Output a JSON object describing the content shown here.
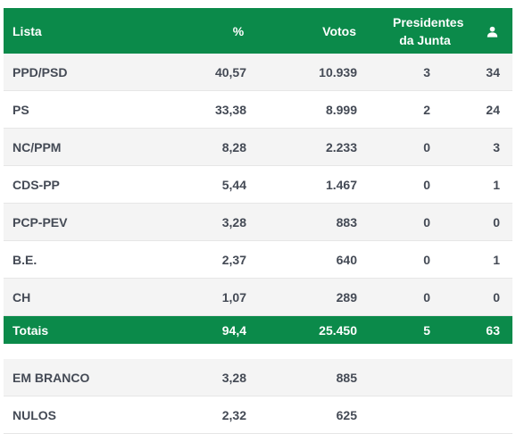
{
  "header": {
    "lista": "Lista",
    "pct": "%",
    "votos": "Votos",
    "presidentes_line1": "Presidentes",
    "presidentes_line2": "da Junta",
    "mandates_icon": "user-icon"
  },
  "rows": [
    {
      "lista": "PPD/PSD",
      "pct": "40,57",
      "votos": "10.939",
      "presidentes": "3",
      "mandatos": "34"
    },
    {
      "lista": "PS",
      "pct": "33,38",
      "votos": "8.999",
      "presidentes": "2",
      "mandatos": "24"
    },
    {
      "lista": "NC/PPM",
      "pct": "8,28",
      "votos": "2.233",
      "presidentes": "0",
      "mandatos": "3"
    },
    {
      "lista": "CDS-PP",
      "pct": "5,44",
      "votos": "1.467",
      "presidentes": "0",
      "mandatos": "1"
    },
    {
      "lista": "PCP-PEV",
      "pct": "3,28",
      "votos": "883",
      "presidentes": "0",
      "mandatos": "0"
    },
    {
      "lista": "B.E.",
      "pct": "2,37",
      "votos": "640",
      "presidentes": "0",
      "mandatos": "1"
    },
    {
      "lista": "CH",
      "pct": "1,07",
      "votos": "289",
      "presidentes": "0",
      "mandatos": "0"
    }
  ],
  "totals": {
    "label": "Totais",
    "pct": "94,4",
    "votos": "25.450",
    "presidentes": "5",
    "mandatos": "63"
  },
  "extra": [
    {
      "label": "EM BRANCO",
      "pct": "3,28",
      "votos": "885"
    },
    {
      "label": "NULOS",
      "pct": "2,32",
      "votos": "625"
    }
  ],
  "colors": {
    "accent": "#0b8a4a",
    "text": "#444a55",
    "shade": "#f4f4f4"
  }
}
